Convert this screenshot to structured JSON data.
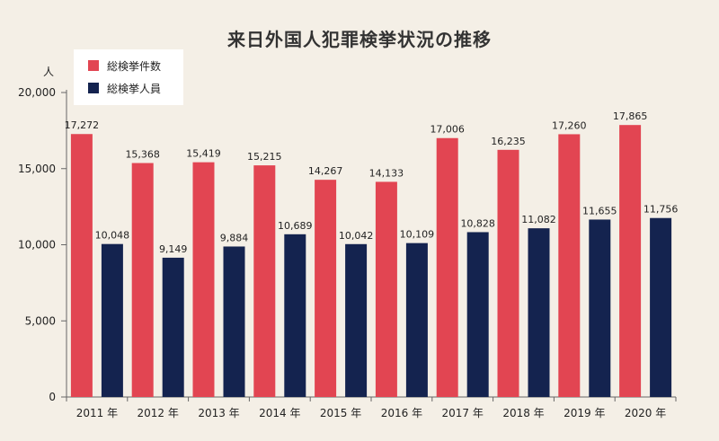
{
  "title": "来日外国人犯罪検挙状況の推移",
  "chart_data": {
    "type": "bar",
    "title": "来日外国人犯罪検挙状況の推移",
    "ylabel": "人",
    "xlabel": "",
    "ylim": [
      0,
      20000
    ],
    "yticks": [
      "0",
      "5,000",
      "10,000",
      "15,000",
      "20,000"
    ],
    "ytick_values": [
      0,
      5000,
      10000,
      15000,
      20000
    ],
    "categories": [
      "2011 年",
      "2012 年",
      "2013 年",
      "2014 年",
      "2015 年",
      "2016 年",
      "2017 年",
      "2018 年",
      "2019 年",
      "2020 年"
    ],
    "series": [
      {
        "name": "総検挙件数",
        "color": "#e24552",
        "values": [
          17272,
          15368,
          15419,
          15215,
          14267,
          14133,
          17006,
          16235,
          17260,
          17865
        ],
        "labels": [
          "17,272",
          "15,368",
          "15,419",
          "15,215",
          "14,267",
          "14,133",
          "17,006",
          "16,235",
          "17,260",
          "17,865"
        ]
      },
      {
        "name": "総検挙人員",
        "color": "#14234f",
        "values": [
          10048,
          9149,
          9884,
          10689,
          10042,
          10109,
          10828,
          11082,
          11655,
          11756
        ],
        "labels": [
          "10,048",
          "9,149",
          "9,884",
          "10,689",
          "10,042",
          "10,109",
          "10,828",
          "11,082",
          "11,655",
          "11,756"
        ]
      }
    ],
    "grid": false,
    "legend_position": "top-left"
  }
}
